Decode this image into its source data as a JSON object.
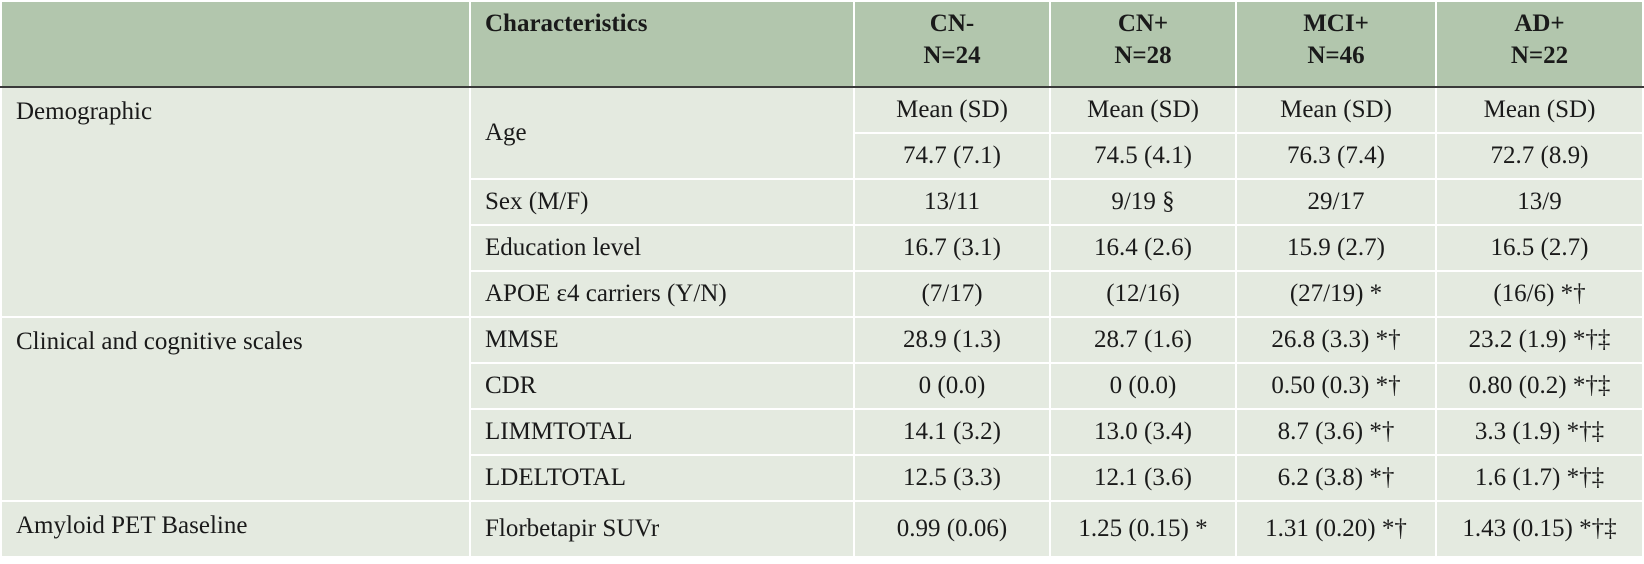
{
  "header": {
    "characteristics": "Characteristics",
    "columns": [
      {
        "name": "CN-",
        "n": "N=24"
      },
      {
        "name": "CN+",
        "n": "N=28"
      },
      {
        "name": "MCI+",
        "n": "N=46"
      },
      {
        "name": "AD+",
        "n": "N=22"
      }
    ]
  },
  "sections": [
    {
      "name": "Demographic",
      "subheader": [
        "Mean (SD)",
        "Mean (SD)",
        "Mean (SD)",
        "Mean (SD)"
      ],
      "rows": [
        {
          "label": "Age",
          "values": [
            "74.7 (7.1)",
            "74.5 (4.1)",
            "76.3 (7.4)",
            "72.7 (8.9)"
          ]
        },
        {
          "label": "Sex (M/F)",
          "values": [
            "13/11",
            "9/19 §",
            "29/17",
            "13/9"
          ]
        },
        {
          "label": "Education level",
          "values": [
            "16.7 (3.1)",
            "16.4 (2.6)",
            "15.9 (2.7)",
            "16.5 (2.7)"
          ]
        },
        {
          "label": "APOE ε4 carriers (Y/N)",
          "values": [
            "(7/17)",
            "(12/16)",
            "(27/19) *",
            "(16/6) *†"
          ]
        }
      ]
    },
    {
      "name": "Clinical and cognitive scales",
      "rows": [
        {
          "label": "MMSE",
          "values": [
            "28.9 (1.3)",
            "28.7 (1.6)",
            "26.8 (3.3) *†",
            "23.2 (1.9) *†‡"
          ]
        },
        {
          "label": "CDR",
          "values": [
            "0 (0.0)",
            "0 (0.0)",
            "0.50 (0.3) *†",
            "0.80 (0.2) *†‡"
          ]
        },
        {
          "label": "LIMMTOTAL",
          "values": [
            "14.1 (3.2)",
            "13.0 (3.4)",
            "8.7 (3.6) *†",
            "3.3 (1.9) *†‡"
          ]
        },
        {
          "label": "LDELTOTAL",
          "values": [
            "12.5 (3.3)",
            "12.1 (3.6)",
            "6.2 (3.8) *†",
            "1.6 (1.7) *†‡"
          ]
        }
      ]
    },
    {
      "name": "Amyloid PET Baseline",
      "rows": [
        {
          "label": "Florbetapir SUVr",
          "values": [
            "0.99 (0.06)",
            "1.25 (0.15) *",
            "1.31 (0.20) *†",
            "1.43 (0.15) *†‡"
          ]
        }
      ]
    }
  ]
}
